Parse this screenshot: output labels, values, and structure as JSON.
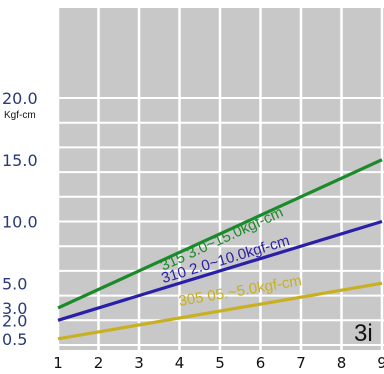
{
  "chart_data": {
    "type": "line",
    "xlabel": "",
    "ylabel": "Kgf-cm",
    "xlim": [
      1,
      9
    ],
    "ylim": [
      0,
      20
    ],
    "x_ticks": [
      "1",
      "2",
      "3",
      "4",
      "5",
      "6",
      "7",
      "8",
      "9"
    ],
    "y_ticks": [
      {
        "value": 20,
        "label": "20.0"
      },
      {
        "value": 15,
        "label": "15.0"
      },
      {
        "value": 10,
        "label": "10.0"
      },
      {
        "value": 5,
        "label": "5.0"
      },
      {
        "value": 3,
        "label": "3.0"
      },
      {
        "value": 2,
        "label": "2.0"
      },
      {
        "value": 0.5,
        "label": "0.5"
      }
    ],
    "grid": true,
    "background_color": "#c8c8c8",
    "series": [
      {
        "name": "315  3.0~15.0kgf-cm",
        "color": "#1a8a2a",
        "x": [
          1,
          9
        ],
        "values": [
          3.0,
          15.0
        ]
      },
      {
        "name": "310  2.0~10.0kgf-cm",
        "color": "#2a20a8",
        "x": [
          1,
          9
        ],
        "values": [
          2.0,
          10.0
        ]
      },
      {
        "name": "305  05.~5.0kgf-cm",
        "color": "#c8b020",
        "x": [
          1,
          9
        ],
        "values": [
          0.5,
          5.0
        ]
      }
    ],
    "annotation": "3i"
  }
}
